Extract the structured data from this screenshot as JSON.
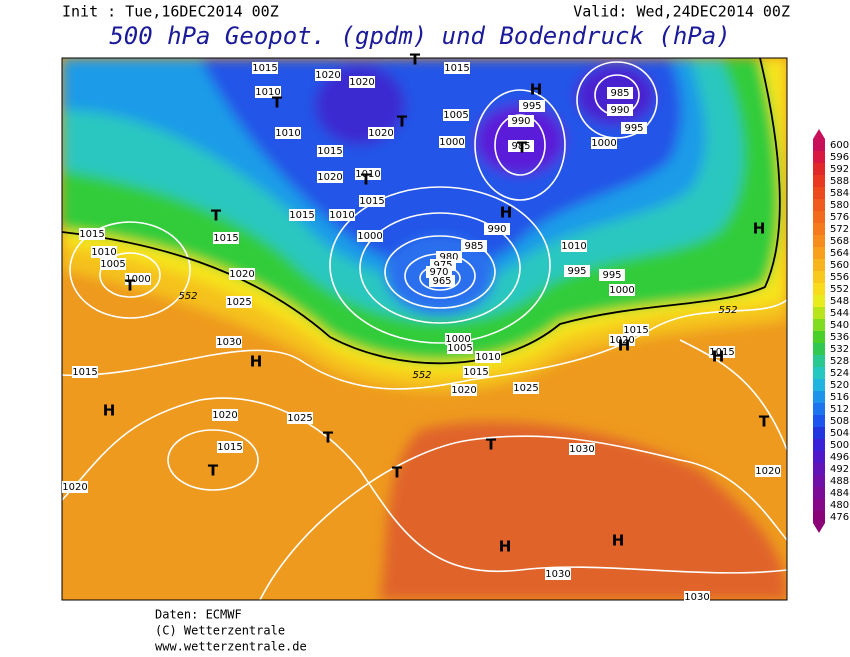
{
  "header": {
    "init": "Init : Tue,16DEC2014 00Z",
    "valid": "Valid: Wed,24DEC2014 00Z",
    "title": "500 hPa Geopot. (gpdm) und Bodendruck (hPa)"
  },
  "colorbar": {
    "labels": [
      "600",
      "596",
      "592",
      "588",
      "584",
      "580",
      "576",
      "572",
      "568",
      "564",
      "560",
      "556",
      "552",
      "548",
      "544",
      "540",
      "536",
      "532",
      "528",
      "524",
      "520",
      "516",
      "512",
      "508",
      "504",
      "500",
      "496",
      "492",
      "488",
      "484",
      "480",
      "476"
    ]
  },
  "map": {
    "pressure_labels": [
      "1015",
      "1020",
      "1020",
      "1015",
      "1010",
      "1010",
      "1020",
      "1005",
      "1000",
      "995",
      "990",
      "985",
      "985",
      "990",
      "995",
      "1000",
      "1015",
      "1020",
      "1010",
      "1015",
      "1015",
      "1010",
      "1000",
      "1015",
      "1010",
      "1005",
      "1000",
      "1015",
      "1020",
      "1025",
      "985",
      "980",
      "975",
      "970",
      "965",
      "990",
      "1010",
      "995",
      "995",
      "1000",
      "1030",
      "1000",
      "1005",
      "1010",
      "1015",
      "1020",
      "1025",
      "1015",
      "1020",
      "1015",
      "1015",
      "1020",
      "1025",
      "1015",
      "1030",
      "1020",
      "1020",
      "1030",
      "1030"
    ],
    "height_labels": [
      "552",
      "552",
      "552"
    ],
    "centers": [
      "T",
      "H",
      "T",
      "T",
      "T",
      "T",
      "H",
      "T",
      "T",
      "H",
      "H",
      "H",
      "H",
      "H",
      "T",
      "T",
      "T",
      "T",
      "T",
      "H",
      "H"
    ]
  },
  "footer": {
    "source": "Daten: ECMWF",
    "copyright": "(C) Wetterzentrale",
    "url": "www.wetterzentrale.de"
  }
}
